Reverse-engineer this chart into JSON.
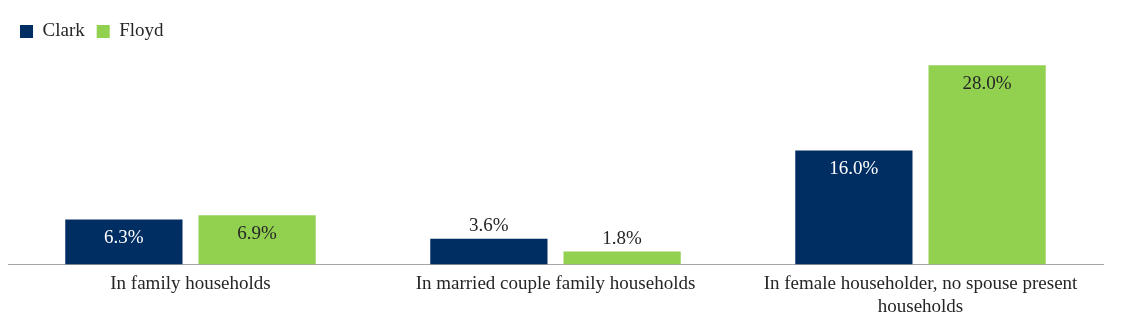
{
  "chart_data": {
    "type": "bar",
    "categories": [
      "In family households",
      "In married couple family households",
      "In female householder, no spouse present households"
    ],
    "series": [
      {
        "name": "Clark",
        "color": "#002d62",
        "values": [
          6.3,
          3.6,
          16.0
        ],
        "value_labels": [
          "6.3%",
          "3.6%",
          "16.0%"
        ]
      },
      {
        "name": "Floyd",
        "color": "#92d050",
        "values": [
          6.9,
          1.8,
          28.0
        ],
        "value_labels": [
          "6.9%",
          "1.8%",
          "28.0%"
        ]
      }
    ],
    "legend": "top left",
    "grid": false
  }
}
